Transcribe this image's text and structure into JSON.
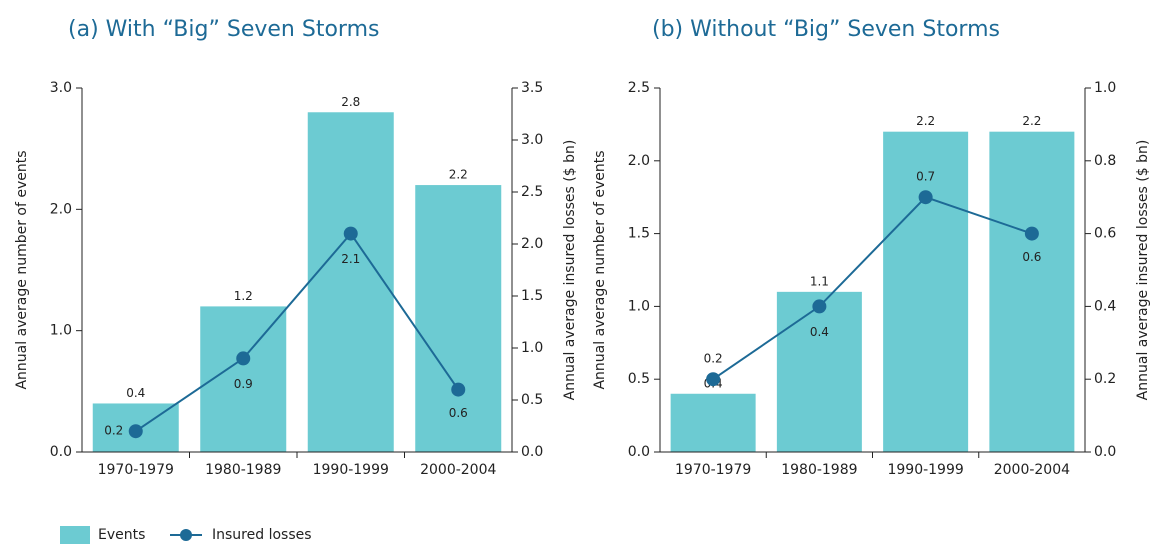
{
  "chart_data": [
    {
      "type": "bar-line",
      "title": "(a) With “Big” Seven Storms",
      "y_label": "Annual average number of events",
      "y2_label": "Annual average insured losses ($ bn)",
      "categories": [
        "1970-1979",
        "1980-1989",
        "1990-1999",
        "2000-2004"
      ],
      "series": [
        {
          "name": "Events",
          "color": "#6ccbd2",
          "kind": "bar",
          "values": [
            0.4,
            1.2,
            2.8,
            2.2
          ]
        },
        {
          "name": "Insured losses",
          "color": "#1d6a96",
          "kind": "line",
          "axis": "y2",
          "values": [
            0.2,
            0.9,
            2.1,
            0.6
          ]
        }
      ],
      "ylim": [
        0,
        3
      ],
      "yticks": [
        {
          "value": 0,
          "label": "0.0"
        },
        {
          "value": 1,
          "label": "1.0"
        },
        {
          "value": 2,
          "label": "2.0"
        },
        {
          "value": 3,
          "label": "3.0"
        }
      ],
      "y2lim": [
        0,
        3.5
      ],
      "y2ticks": [
        {
          "value": 0,
          "label": "0.0"
        },
        0.5,
        {
          "value": 1,
          "label": "1.0"
        },
        1.5,
        {
          "value": 2,
          "label": "2.0"
        },
        2.5,
        {
          "value": 3,
          "label": "3.0"
        },
        3.5
      ]
    },
    {
      "type": "bar-line",
      "title": "(b) Without “Big” Seven Storms",
      "y_label": "Annual average number of events",
      "y2_label": "Annual average insured losses ($ bn)",
      "categories": [
        "1970-1979",
        "1980-1989",
        "1990-1999",
        "2000-2004"
      ],
      "series": [
        {
          "color": "#6ccbd2",
          "kind": "bar",
          "values": [
            0.4,
            1.1,
            2.2,
            2.2
          ]
        },
        {
          "color": "#1d6a96",
          "kind": "line",
          "axis": "y2",
          "values": [
            0.2,
            0.4,
            0.7,
            0.6
          ]
        }
      ],
      "ylim": [
        0,
        2.5
      ],
      "yticks": [
        {
          "value": 0,
          "label": "0.0"
        },
        0.5,
        {
          "value": 1,
          "label": "1.0"
        },
        1.5,
        {
          "value": 2,
          "label": "2.0"
        },
        2.5
      ],
      "y2lim": [
        0,
        1
      ],
      "y2ticks": [
        {
          "value": 0,
          "label": "0.0"
        },
        0.2,
        0.4,
        0.6,
        0.8,
        {
          "value": 1,
          "label": "1.0"
        }
      ]
    }
  ]
}
